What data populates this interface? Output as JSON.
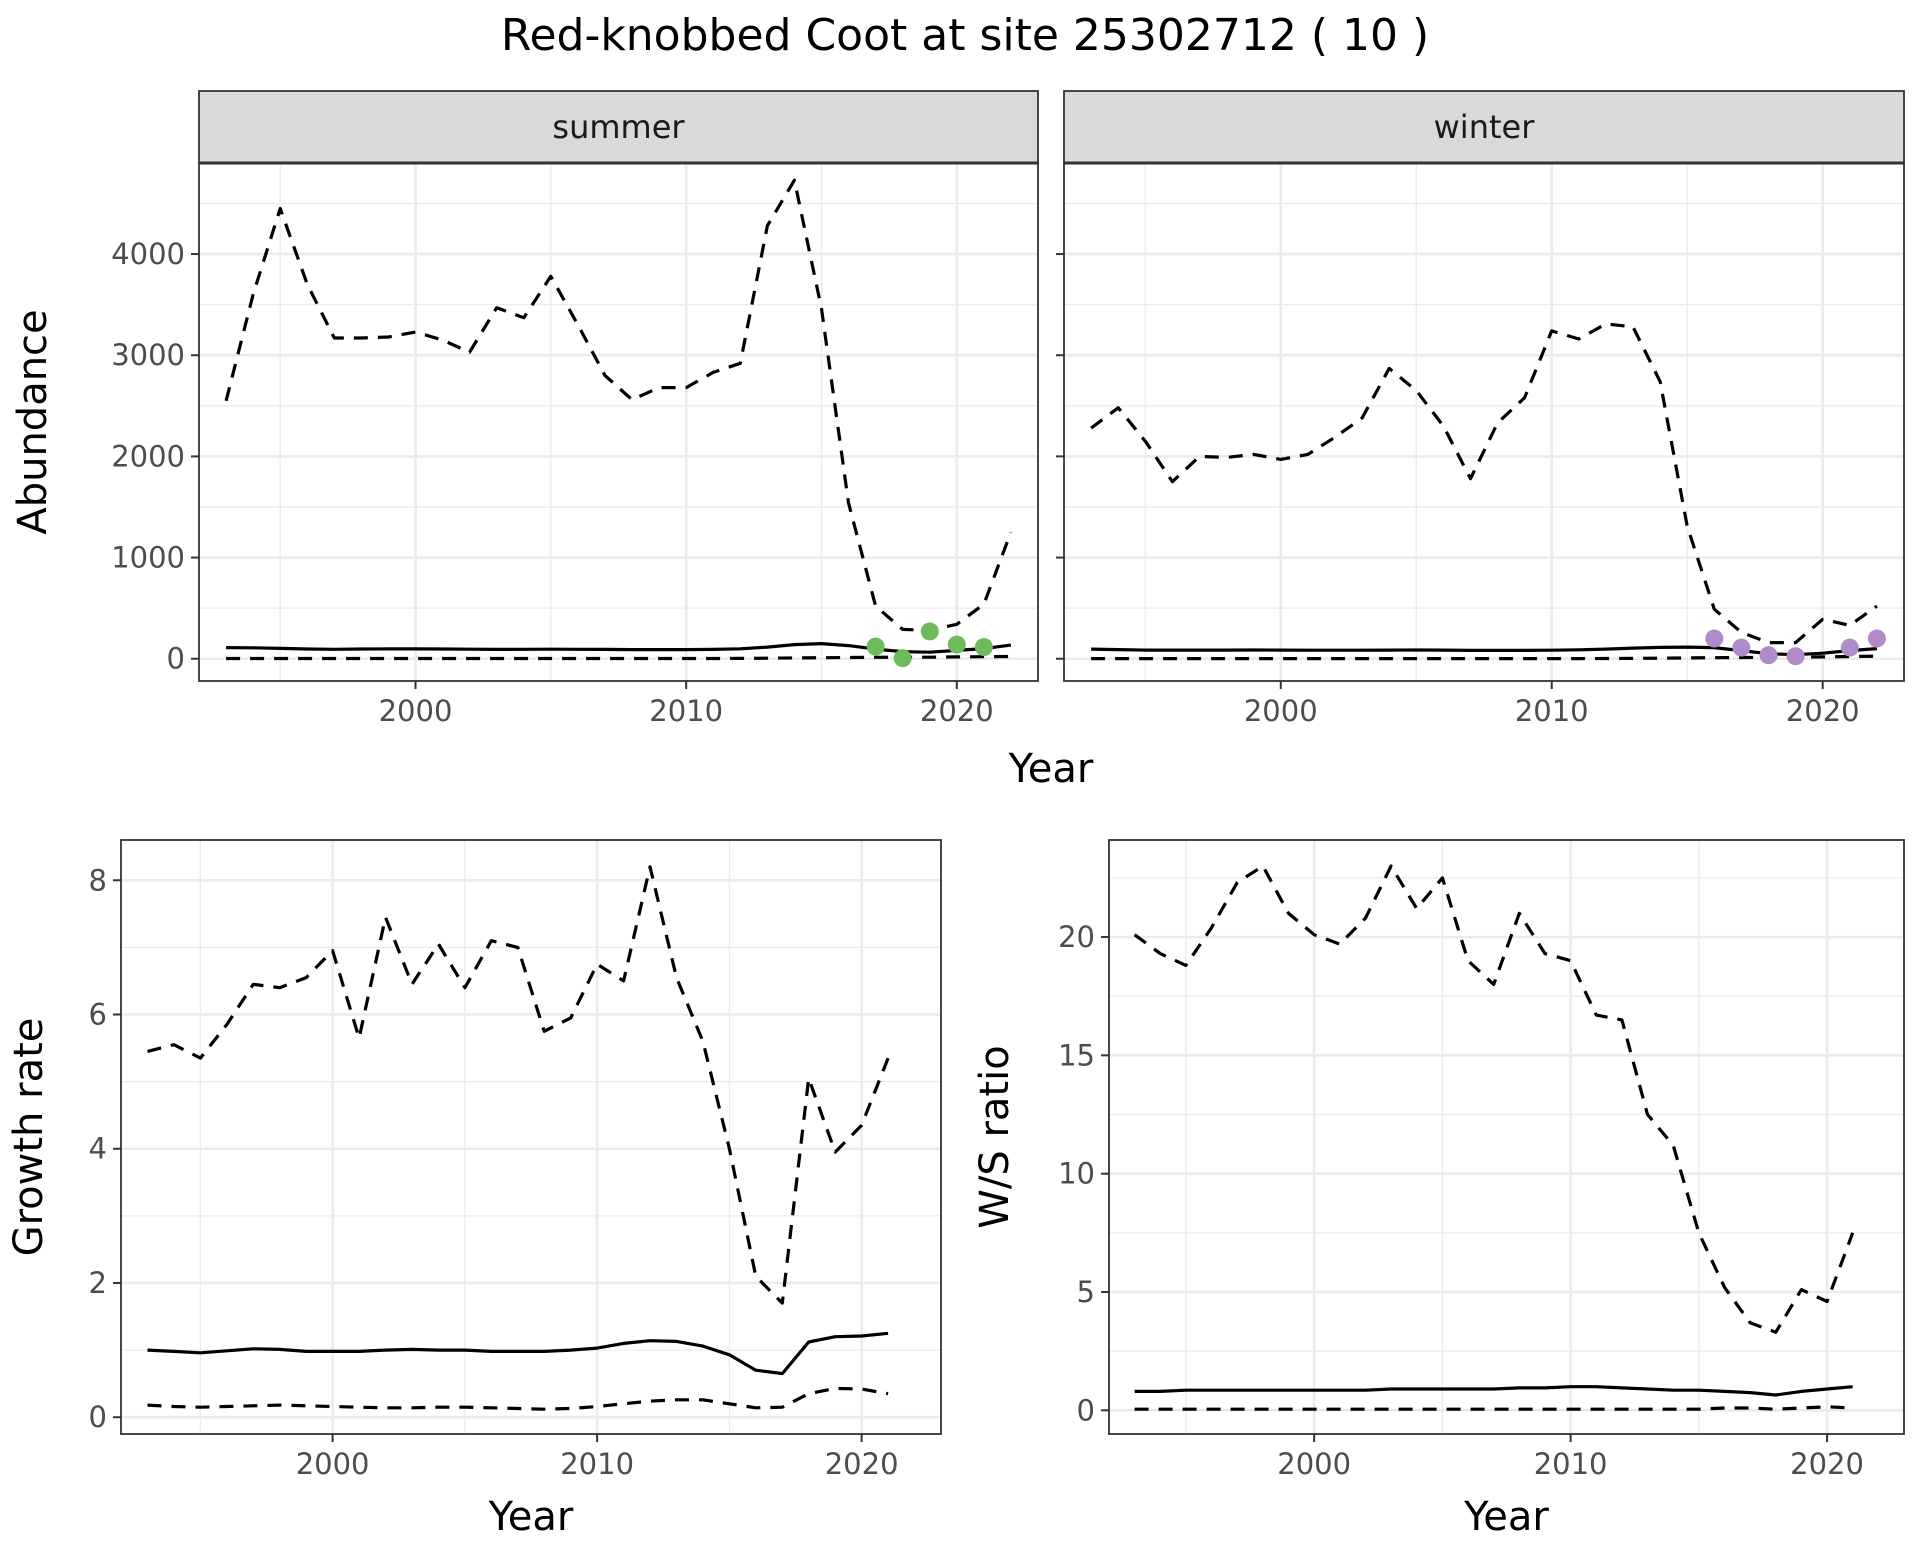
{
  "title": "Red-knobbed Coot at site 25302712 ( 10 )",
  "colors": {
    "summer_points": "#6dbb5a",
    "winter_points": "#b08bc9",
    "lines": "#000000",
    "strip": "#d9d9d9",
    "grid": "#ebebeb"
  },
  "chart_data": [
    {
      "type": "line",
      "facet": "summer",
      "xlabel": "Year",
      "ylabel": "Abundance",
      "xlim": [
        1992,
        2023
      ],
      "ylim": [
        -220,
        4900
      ],
      "xticks": [
        2000,
        2010,
        2020
      ],
      "yticks": [
        0,
        1000,
        2000,
        3000,
        4000
      ],
      "grid": true,
      "x": [
        1993,
        1994,
        1995,
        1996,
        1997,
        1998,
        1999,
        2000,
        2001,
        2002,
        2003,
        2004,
        2005,
        2006,
        2007,
        2008,
        2009,
        2010,
        2011,
        2012,
        2013,
        2014,
        2015,
        2016,
        2017,
        2018,
        2019,
        2020,
        2021,
        2022
      ],
      "series": [
        {
          "style": "dashed",
          "values": [
            2550,
            3600,
            4450,
            3700,
            3170,
            3170,
            3180,
            3230,
            3150,
            3030,
            3470,
            3370,
            3780,
            3300,
            2800,
            2560,
            2680,
            2680,
            2830,
            2920,
            4280,
            4730,
            3460,
            1540,
            520,
            290,
            280,
            340,
            540,
            1250
          ]
        },
        {
          "style": "solid",
          "values": [
            110,
            108,
            102,
            96,
            93,
            96,
            97,
            97,
            96,
            94,
            92,
            93,
            94,
            93,
            92,
            90,
            90,
            90,
            92,
            98,
            115,
            140,
            150,
            130,
            95,
            70,
            65,
            82,
            100,
            135
          ]
        },
        {
          "style": "dashed",
          "values": [
            2,
            2,
            2,
            2,
            2,
            2,
            2,
            2,
            2,
            2,
            2,
            2,
            2,
            2,
            2,
            2,
            2,
            2,
            2,
            3,
            5,
            8,
            10,
            12,
            14,
            15,
            15,
            18,
            20,
            22
          ]
        }
      ],
      "points": {
        "x": [
          2017,
          2018,
          2019,
          2020,
          2021
        ],
        "y": [
          120,
          5,
          270,
          140,
          115
        ]
      }
    },
    {
      "type": "line",
      "facet": "winter",
      "xlabel": "Year",
      "ylabel": "Abundance",
      "xlim": [
        1992,
        2023
      ],
      "ylim": [
        -220,
        4900
      ],
      "xticks": [
        2000,
        2010,
        2020
      ],
      "yticks": [
        0,
        1000,
        2000,
        3000,
        4000
      ],
      "grid": true,
      "x": [
        1993,
        1994,
        1995,
        1996,
        1997,
        1998,
        1999,
        2000,
        2001,
        2002,
        2003,
        2004,
        2005,
        2006,
        2007,
        2008,
        2009,
        2010,
        2011,
        2012,
        2013,
        2014,
        2015,
        2016,
        2017,
        2018,
        2019,
        2020,
        2021,
        2022
      ],
      "series": [
        {
          "style": "dashed",
          "values": [
            2280,
            2480,
            2150,
            1750,
            2000,
            1990,
            2020,
            1970,
            2020,
            2190,
            2380,
            2870,
            2650,
            2300,
            1780,
            2330,
            2580,
            3240,
            3160,
            3310,
            3280,
            2740,
            1310,
            490,
            260,
            160,
            160,
            390,
            330,
            520
          ]
        },
        {
          "style": "solid",
          "values": [
            95,
            90,
            85,
            85,
            85,
            85,
            86,
            85,
            84,
            84,
            84,
            85,
            86,
            85,
            82,
            82,
            82,
            84,
            88,
            95,
            105,
            112,
            115,
            110,
            80,
            50,
            40,
            55,
            80,
            100
          ]
        },
        {
          "style": "dashed",
          "values": [
            1,
            1,
            1,
            1,
            1,
            1,
            1,
            1,
            1,
            1,
            1,
            1,
            1,
            1,
            1,
            1,
            1,
            1,
            1,
            2,
            3,
            5,
            8,
            10,
            12,
            14,
            15,
            18,
            22,
            25
          ]
        }
      ],
      "points": {
        "x": [
          2016,
          2017,
          2018,
          2019,
          2021,
          2022
        ],
        "y": [
          200,
          110,
          35,
          25,
          110,
          200
        ]
      }
    },
    {
      "type": "line",
      "xlabel": "Year",
      "ylabel": "Growth rate",
      "xlim": [
        1992,
        2023
      ],
      "ylim": [
        -0.25,
        8.6
      ],
      "xticks": [
        2000,
        2010,
        2020
      ],
      "yticks": [
        0,
        2,
        4,
        6,
        8
      ],
      "grid": true,
      "x": [
        1993,
        1994,
        1995,
        1996,
        1997,
        1998,
        1999,
        2000,
        2001,
        2002,
        2003,
        2004,
        2005,
        2006,
        2007,
        2008,
        2009,
        2010,
        2011,
        2012,
        2013,
        2014,
        2015,
        2016,
        2017,
        2018,
        2019,
        2020,
        2021
      ],
      "series": [
        {
          "style": "dashed",
          "values": [
            5.45,
            5.55,
            5.35,
            5.85,
            6.45,
            6.4,
            6.55,
            6.95,
            5.65,
            7.45,
            6.45,
            7.05,
            6.4,
            7.1,
            7.0,
            5.75,
            5.95,
            6.75,
            6.5,
            8.2,
            6.55,
            5.6,
            4.0,
            2.1,
            1.7,
            5.05,
            3.95,
            4.35,
            5.35
          ]
        },
        {
          "style": "solid",
          "values": [
            1.0,
            0.98,
            0.96,
            0.99,
            1.02,
            1.01,
            0.98,
            0.98,
            0.98,
            1.0,
            1.01,
            1.0,
            1.0,
            0.98,
            0.98,
            0.98,
            1.0,
            1.03,
            1.1,
            1.14,
            1.13,
            1.06,
            0.93,
            0.7,
            0.65,
            1.12,
            1.2,
            1.21,
            1.25
          ]
        },
        {
          "style": "dashed",
          "values": [
            0.18,
            0.16,
            0.15,
            0.16,
            0.17,
            0.18,
            0.17,
            0.16,
            0.15,
            0.14,
            0.14,
            0.15,
            0.15,
            0.14,
            0.13,
            0.12,
            0.13,
            0.16,
            0.2,
            0.24,
            0.26,
            0.26,
            0.2,
            0.14,
            0.15,
            0.35,
            0.43,
            0.42,
            0.35
          ]
        }
      ]
    },
    {
      "type": "line",
      "xlabel": "Year",
      "ylabel": "W/S ratio",
      "xlim": [
        1992,
        2023
      ],
      "ylim": [
        -1.0,
        24.1
      ],
      "xticks": [
        2000,
        2010,
        2020
      ],
      "yticks": [
        0,
        5,
        10,
        15,
        20
      ],
      "grid": true,
      "x": [
        1993,
        1994,
        1995,
        1996,
        1997,
        1998,
        1999,
        2000,
        2001,
        2002,
        2003,
        2004,
        2005,
        2006,
        2007,
        2008,
        2009,
        2010,
        2011,
        2012,
        2013,
        2014,
        2015,
        2016,
        2017,
        2018,
        2019,
        2020,
        2021
      ],
      "series": [
        {
          "style": "dashed",
          "values": [
            20.1,
            19.3,
            18.8,
            20.4,
            22.3,
            23.0,
            21.0,
            20.1,
            19.7,
            20.8,
            23.0,
            21.2,
            22.5,
            19.0,
            18.0,
            21.0,
            19.3,
            19.0,
            16.7,
            16.5,
            12.5,
            11.2,
            7.5,
            5.2,
            3.7,
            3.3,
            5.1,
            4.6,
            7.5
          ]
        },
        {
          "style": "solid",
          "values": [
            0.8,
            0.8,
            0.85,
            0.85,
            0.85,
            0.85,
            0.85,
            0.85,
            0.85,
            0.85,
            0.9,
            0.9,
            0.9,
            0.9,
            0.9,
            0.95,
            0.95,
            1.0,
            1.0,
            0.95,
            0.9,
            0.85,
            0.85,
            0.8,
            0.75,
            0.65,
            0.8,
            0.9,
            1.0
          ]
        },
        {
          "style": "dashed",
          "values": [
            0.05,
            0.05,
            0.05,
            0.05,
            0.05,
            0.05,
            0.05,
            0.05,
            0.05,
            0.05,
            0.05,
            0.05,
            0.05,
            0.05,
            0.05,
            0.05,
            0.05,
            0.05,
            0.05,
            0.05,
            0.05,
            0.05,
            0.05,
            0.1,
            0.1,
            0.05,
            0.1,
            0.15,
            0.1
          ]
        }
      ]
    }
  ]
}
